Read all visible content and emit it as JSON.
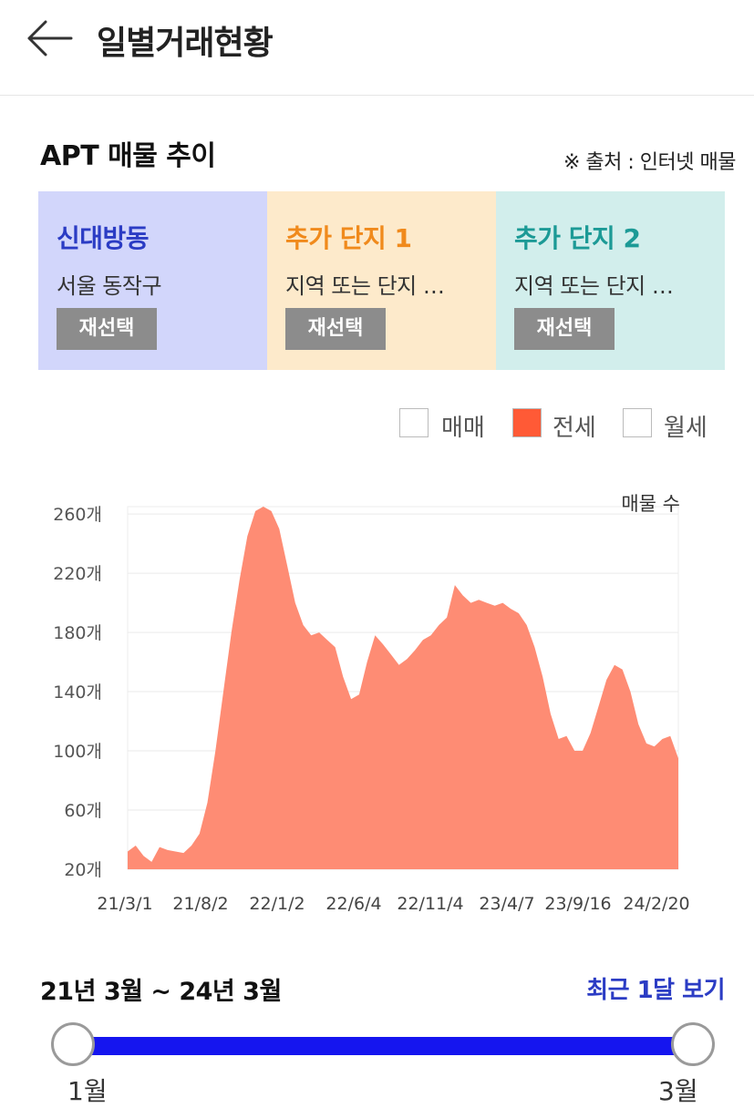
{
  "header": {
    "title": "일별거래현황",
    "back_icon": "arrow-left-icon"
  },
  "section": {
    "title": "APT 매물 추이",
    "source": "※ 출처 : 인터넷 매물"
  },
  "cards": [
    {
      "name": "신대방동",
      "sub": "서울 동작구",
      "button": "재선택",
      "color": "#2b3cc4",
      "bg": "#d2d6fb"
    },
    {
      "name": "추가 단지 1",
      "sub": "지역 또는 단지 …",
      "button": "재선택",
      "color": "#f08a1c",
      "bg": "#fdeacb"
    },
    {
      "name": "추가 단지 2",
      "sub": "지역 또는 단지 …",
      "button": "재선택",
      "color": "#1c9a96",
      "bg": "#d2eeec"
    }
  ],
  "legend": [
    {
      "label": "매매",
      "checked": false
    },
    {
      "label": "전세",
      "checked": true,
      "color": "#ff5a36"
    },
    {
      "label": "월세",
      "checked": false
    }
  ],
  "chart_data": {
    "type": "area",
    "ylabel": "매물 수",
    "y_ticks": [
      "20개",
      "60개",
      "100개",
      "140개",
      "180개",
      "220개",
      "260개"
    ],
    "ylim": [
      20,
      265
    ],
    "x_ticks": [
      "21/3/1",
      "21/8/2",
      "22/1/2",
      "22/6/4",
      "22/11/4",
      "23/4/7",
      "23/9/16",
      "24/2/20"
    ],
    "grid": true,
    "series": [
      {
        "color": "#fe8c74",
        "values": [
          32,
          36,
          29,
          25,
          35,
          33,
          32,
          31,
          36,
          44,
          65,
          100,
          140,
          180,
          215,
          245,
          262,
          265,
          262,
          250,
          225,
          200,
          185,
          178,
          180,
          175,
          170,
          150,
          135,
          138,
          160,
          178,
          172,
          165,
          158,
          162,
          168,
          175,
          178,
          185,
          190,
          212,
          205,
          200,
          202,
          200,
          198,
          200,
          196,
          193,
          185,
          170,
          150,
          125,
          108,
          110,
          100,
          100,
          112,
          130,
          148,
          158,
          155,
          140,
          118,
          105,
          103,
          108,
          110,
          95
        ]
      }
    ]
  },
  "range": {
    "label": "21년 3월 ~ 24년 3월",
    "recent": "최근 1달 보기",
    "start": "1월",
    "end": "3월"
  }
}
